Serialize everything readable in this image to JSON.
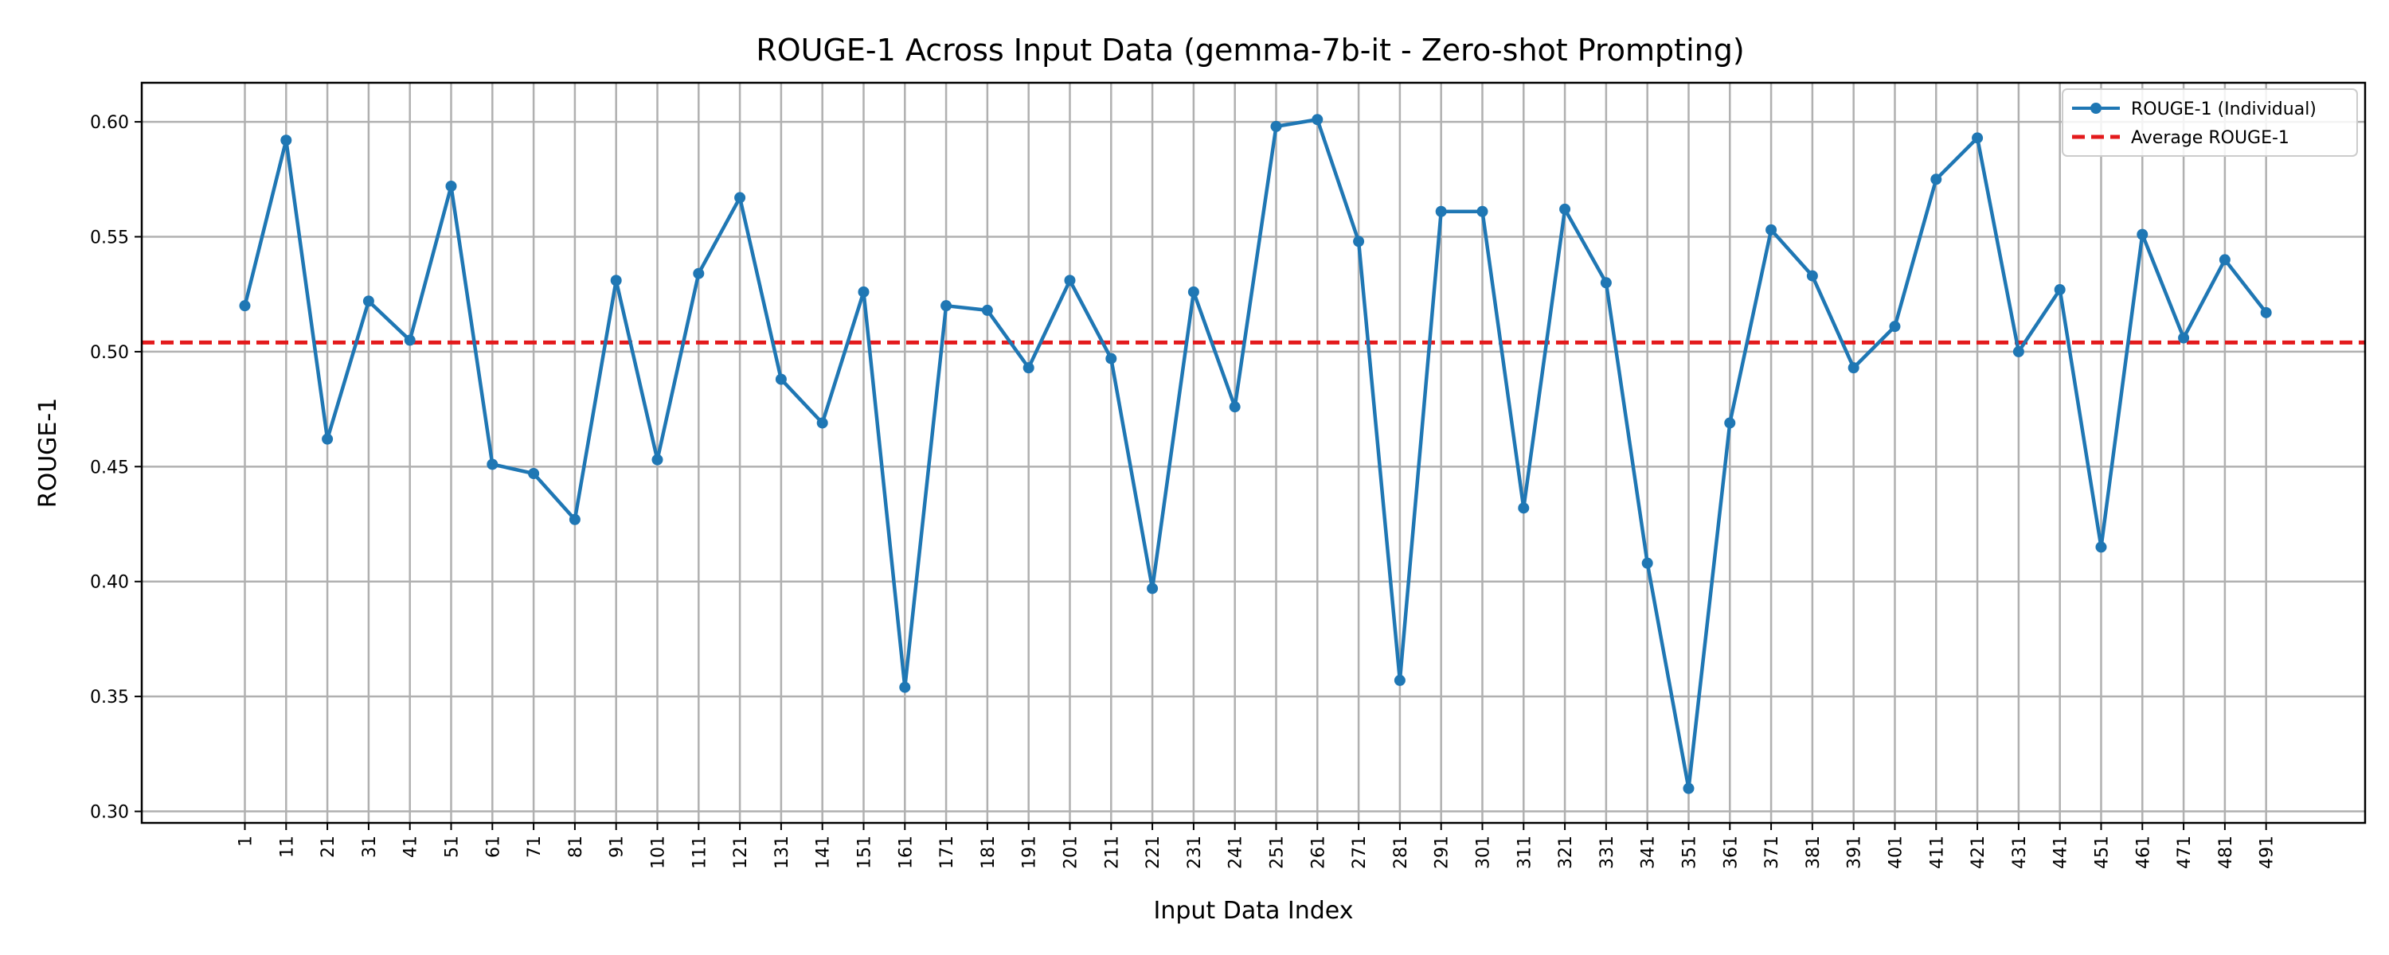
{
  "chart_data": {
    "type": "line",
    "title": "ROUGE-1 Across Input Data (gemma-7b-it - Zero-shot Prompting)",
    "xlabel": "Input Data Index",
    "ylabel": "ROUGE-1",
    "x": [
      1,
      11,
      21,
      31,
      41,
      51,
      61,
      71,
      81,
      91,
      101,
      111,
      121,
      131,
      141,
      151,
      161,
      171,
      181,
      191,
      201,
      211,
      221,
      231,
      241,
      251,
      261,
      271,
      281,
      291,
      301,
      311,
      321,
      331,
      341,
      351,
      361,
      371,
      381,
      391,
      401,
      411,
      421,
      431,
      441,
      451,
      461,
      471,
      481,
      491
    ],
    "series": [
      {
        "name": "ROUGE-1 (Individual)",
        "values": [
          0.52,
          0.592,
          0.462,
          0.522,
          0.505,
          0.572,
          0.451,
          0.447,
          0.427,
          0.531,
          0.453,
          0.534,
          0.567,
          0.488,
          0.469,
          0.526,
          0.354,
          0.52,
          0.518,
          0.493,
          0.531,
          0.497,
          0.397,
          0.526,
          0.476,
          0.598,
          0.601,
          0.548,
          0.357,
          0.561,
          0.561,
          0.432,
          0.562,
          0.53,
          0.408,
          0.31,
          0.469,
          0.553,
          0.533,
          0.493,
          0.511,
          0.575,
          0.593,
          0.5,
          0.527,
          0.415,
          0.551,
          0.506,
          0.54,
          0.517
        ],
        "color": "#1f77b4"
      }
    ],
    "average": {
      "name": "Average ROUGE-1",
      "value": 0.504,
      "color": "#e31a1c"
    },
    "yticks": [
      "0.30",
      "0.35",
      "0.40",
      "0.45",
      "0.50",
      "0.55",
      "0.60"
    ],
    "ylim": [
      0.295,
      0.617
    ],
    "xlim": [
      -24,
      515
    ],
    "grid": true,
    "legend_position": "top-right"
  }
}
